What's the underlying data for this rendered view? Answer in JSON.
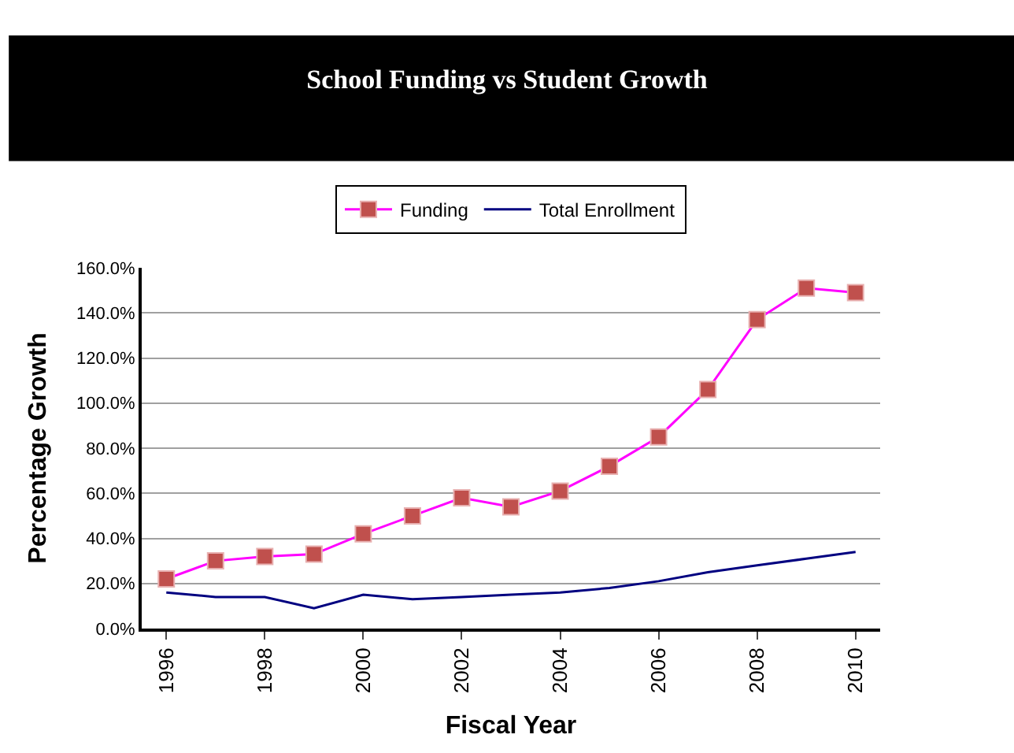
{
  "chart_data": {
    "type": "line",
    "title": "School Funding vs Student Growth",
    "xlabel": "Fiscal Year",
    "ylabel": "Percentage Growth",
    "categories": [
      "1996",
      null,
      "1998",
      null,
      "2000",
      null,
      "2002",
      null,
      "2004",
      null,
      "2006",
      null,
      "2008",
      null,
      "2010"
    ],
    "series": [
      {
        "name": "Funding",
        "color": "#ff00ff",
        "colors": [
          "#c0504d",
          "#c0504d",
          "#c0504d",
          "#c0504d",
          "#c0504d",
          "#c0504d",
          "#c0504d",
          "#c0504d",
          "#c0504d",
          "#c0504d",
          "#c0504d",
          "#c0504d",
          "#c0504d",
          "#c0504d",
          "#c0504d"
        ],
        "marker": "square",
        "values": [
          22,
          30,
          32,
          33,
          42,
          50,
          58,
          54,
          61,
          72,
          85,
          106,
          137,
          151,
          149
        ]
      },
      {
        "name": "Total Enrollment",
        "color": "#000080",
        "marker": "none",
        "values": [
          16,
          14,
          14,
          9,
          15,
          13,
          14,
          15,
          16,
          18,
          21,
          25,
          28,
          31,
          34
        ]
      }
    ],
    "ylim": [
      0,
      160
    ],
    "yticks": [
      {
        "value": 0,
        "label": "0.0%"
      },
      {
        "value": 20,
        "label": "20.0%"
      },
      {
        "value": 40,
        "label": "40.0%"
      },
      {
        "value": 60,
        "label": "60.0%"
      },
      {
        "value": 80,
        "label": "80.0%"
      },
      {
        "value": 100,
        "label": "100.0%"
      },
      {
        "value": 120,
        "label": "120.0%"
      },
      {
        "value": 140,
        "label": "140.0%"
      },
      {
        "value": 160,
        "label": "160.0%"
      }
    ],
    "grid": "y",
    "legend": "top"
  }
}
